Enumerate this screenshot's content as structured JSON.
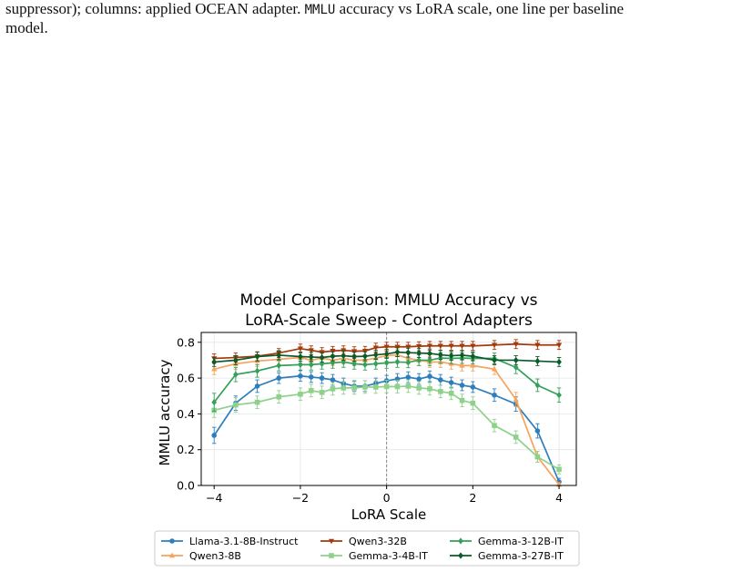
{
  "caption": {
    "line1_prefix": "suppressor); columns: applied OCEAN adapter.",
    "metric_mono": "MMLU",
    "line1_suffix": "accuracy vs LoRA scale, one line per baseline",
    "line2": "model."
  },
  "chart_data": {
    "type": "line",
    "title_lines": [
      "Model Comparison: MMLU Accuracy vs",
      "LoRA-Scale Sweep - Control Adapters"
    ],
    "xlabel": "LoRA Scale",
    "ylabel": "MMLU accuracy",
    "xlim": [
      -4.3,
      4.4
    ],
    "ylim": [
      0.0,
      0.855
    ],
    "xticks": [
      -4,
      -2,
      0,
      2,
      4
    ],
    "xtick_labels": [
      "−4",
      "−2",
      "0",
      "2",
      "4"
    ],
    "yticks": [
      0.0,
      0.2,
      0.4,
      0.6,
      0.8
    ],
    "ytick_labels": [
      "0.0",
      "0.2",
      "0.4",
      "0.6",
      "0.8"
    ],
    "grid": true,
    "reference_line_x": 0,
    "legend_position": "below",
    "series": [
      {
        "name": "Llama-3.1-8B-Instruct",
        "color": "#2e7ebc",
        "marker": "circle",
        "x": [
          -4,
          -3.5,
          -3,
          -2.5,
          -2,
          -1.75,
          -1.5,
          -1.25,
          -1,
          -0.75,
          -0.5,
          -0.25,
          0,
          0.25,
          0.5,
          0.75,
          1,
          1.25,
          1.5,
          1.75,
          2,
          2.5,
          3,
          3.5,
          4
        ],
        "y": [
          0.28,
          0.46,
          0.555,
          0.6,
          0.612,
          0.606,
          0.6,
          0.59,
          0.57,
          0.555,
          0.555,
          0.57,
          0.585,
          0.595,
          0.605,
          0.595,
          0.61,
          0.59,
          0.575,
          0.56,
          0.55,
          0.505,
          0.455,
          0.305,
          0.02
        ],
        "err": [
          0.045,
          0.04,
          0.035,
          0.03,
          0.03,
          0.03,
          0.03,
          0.03,
          0.03,
          0.03,
          0.03,
          0.03,
          0.03,
          0.03,
          0.03,
          0.03,
          0.03,
          0.03,
          0.03,
          0.03,
          0.03,
          0.035,
          0.04,
          0.04,
          0.02
        ]
      },
      {
        "name": "Qwen3-8B",
        "color": "#f7a35c",
        "marker": "triangle-up",
        "x": [
          -4,
          -3.5,
          -3,
          -2.5,
          -2,
          -1.75,
          -1.5,
          -1.25,
          -1,
          -0.75,
          -0.5,
          -0.25,
          0,
          0.25,
          0.5,
          0.75,
          1,
          1.25,
          1.5,
          1.75,
          2,
          2.5,
          3,
          3.5,
          4
        ],
        "y": [
          0.65,
          0.68,
          0.695,
          0.705,
          0.715,
          0.7,
          0.712,
          0.7,
          0.71,
          0.7,
          0.7,
          0.712,
          0.725,
          0.73,
          0.71,
          0.7,
          0.69,
          0.69,
          0.68,
          0.67,
          0.67,
          0.65,
          0.48,
          0.16,
          0.005
        ],
        "err": [
          0.03,
          0.03,
          0.03,
          0.03,
          0.03,
          0.03,
          0.03,
          0.03,
          0.03,
          0.03,
          0.03,
          0.03,
          0.03,
          0.03,
          0.03,
          0.03,
          0.03,
          0.03,
          0.03,
          0.03,
          0.03,
          0.03,
          0.04,
          0.03,
          0.01
        ]
      },
      {
        "name": "Qwen3-32B",
        "color": "#a33a0c",
        "marker": "triangle-down",
        "x": [
          -4,
          -3.5,
          -3,
          -2.5,
          -2,
          -1.75,
          -1.5,
          -1.25,
          -1,
          -0.75,
          -0.5,
          -0.25,
          0,
          0.25,
          0.5,
          0.75,
          1,
          1.25,
          1.5,
          1.75,
          2,
          2.5,
          3,
          3.5,
          4
        ],
        "y": [
          0.71,
          0.715,
          0.722,
          0.74,
          0.765,
          0.755,
          0.745,
          0.752,
          0.755,
          0.75,
          0.752,
          0.77,
          0.775,
          0.775,
          0.775,
          0.778,
          0.78,
          0.78,
          0.78,
          0.78,
          0.78,
          0.785,
          0.79,
          0.785,
          0.785
        ],
        "err": [
          0.025,
          0.025,
          0.025,
          0.025,
          0.025,
          0.025,
          0.025,
          0.025,
          0.025,
          0.025,
          0.025,
          0.025,
          0.025,
          0.025,
          0.025,
          0.025,
          0.025,
          0.025,
          0.025,
          0.025,
          0.025,
          0.025,
          0.025,
          0.025,
          0.025
        ]
      },
      {
        "name": "Gemma-3-4B-IT",
        "color": "#8fd18a",
        "marker": "square",
        "x": [
          -4,
          -3.5,
          -3,
          -2.5,
          -2,
          -1.75,
          -1.5,
          -1.25,
          -1,
          -0.75,
          -0.5,
          -0.25,
          0,
          0.25,
          0.5,
          0.75,
          1,
          1.25,
          1.5,
          1.75,
          2,
          2.5,
          3,
          3.5,
          4
        ],
        "y": [
          0.42,
          0.45,
          0.465,
          0.495,
          0.51,
          0.53,
          0.52,
          0.54,
          0.545,
          0.545,
          0.55,
          0.55,
          0.553,
          0.552,
          0.555,
          0.545,
          0.54,
          0.525,
          0.515,
          0.475,
          0.46,
          0.335,
          0.27,
          0.16,
          0.09
        ],
        "err": [
          0.04,
          0.04,
          0.035,
          0.035,
          0.035,
          0.035,
          0.035,
          0.035,
          0.035,
          0.035,
          0.035,
          0.035,
          0.035,
          0.035,
          0.035,
          0.035,
          0.035,
          0.035,
          0.035,
          0.035,
          0.035,
          0.035,
          0.035,
          0.03,
          0.025
        ]
      },
      {
        "name": "Gemma-3-12B-IT",
        "color": "#35a05a",
        "marker": "diamond",
        "x": [
          -4,
          -3.5,
          -3,
          -2.5,
          -2,
          -1.75,
          -1.5,
          -1.25,
          -1,
          -0.75,
          -0.5,
          -0.25,
          0,
          0.25,
          0.5,
          0.75,
          1,
          1.25,
          1.5,
          1.75,
          2,
          2.5,
          3,
          3.5,
          4
        ],
        "y": [
          0.465,
          0.62,
          0.64,
          0.67,
          0.675,
          0.675,
          0.68,
          0.685,
          0.69,
          0.68,
          0.675,
          0.68,
          0.685,
          0.69,
          0.688,
          0.7,
          0.7,
          0.712,
          0.71,
          0.712,
          0.71,
          0.71,
          0.66,
          0.56,
          0.505
        ],
        "err": [
          0.05,
          0.04,
          0.035,
          0.03,
          0.03,
          0.03,
          0.03,
          0.03,
          0.03,
          0.03,
          0.03,
          0.03,
          0.03,
          0.03,
          0.03,
          0.03,
          0.03,
          0.03,
          0.03,
          0.03,
          0.03,
          0.03,
          0.035,
          0.035,
          0.04
        ]
      },
      {
        "name": "Gemma-3-27B-IT",
        "color": "#0b5a2a",
        "marker": "diamond",
        "x": [
          -4,
          -3.5,
          -3,
          -2.5,
          -2,
          -1.75,
          -1.5,
          -1.25,
          -1,
          -0.75,
          -0.5,
          -0.25,
          0,
          0.25,
          0.5,
          0.75,
          1,
          1.25,
          1.5,
          1.75,
          2,
          2.5,
          3,
          3.5,
          4
        ],
        "y": [
          0.69,
          0.7,
          0.72,
          0.728,
          0.72,
          0.718,
          0.715,
          0.722,
          0.725,
          0.72,
          0.722,
          0.73,
          0.735,
          0.745,
          0.742,
          0.74,
          0.738,
          0.73,
          0.725,
          0.728,
          0.722,
          0.7,
          0.7,
          0.695,
          0.69
        ],
        "err": [
          0.025,
          0.025,
          0.025,
          0.025,
          0.025,
          0.025,
          0.025,
          0.025,
          0.025,
          0.025,
          0.025,
          0.025,
          0.025,
          0.025,
          0.025,
          0.025,
          0.025,
          0.025,
          0.025,
          0.025,
          0.025,
          0.025,
          0.025,
          0.025,
          0.025
        ]
      }
    ]
  }
}
